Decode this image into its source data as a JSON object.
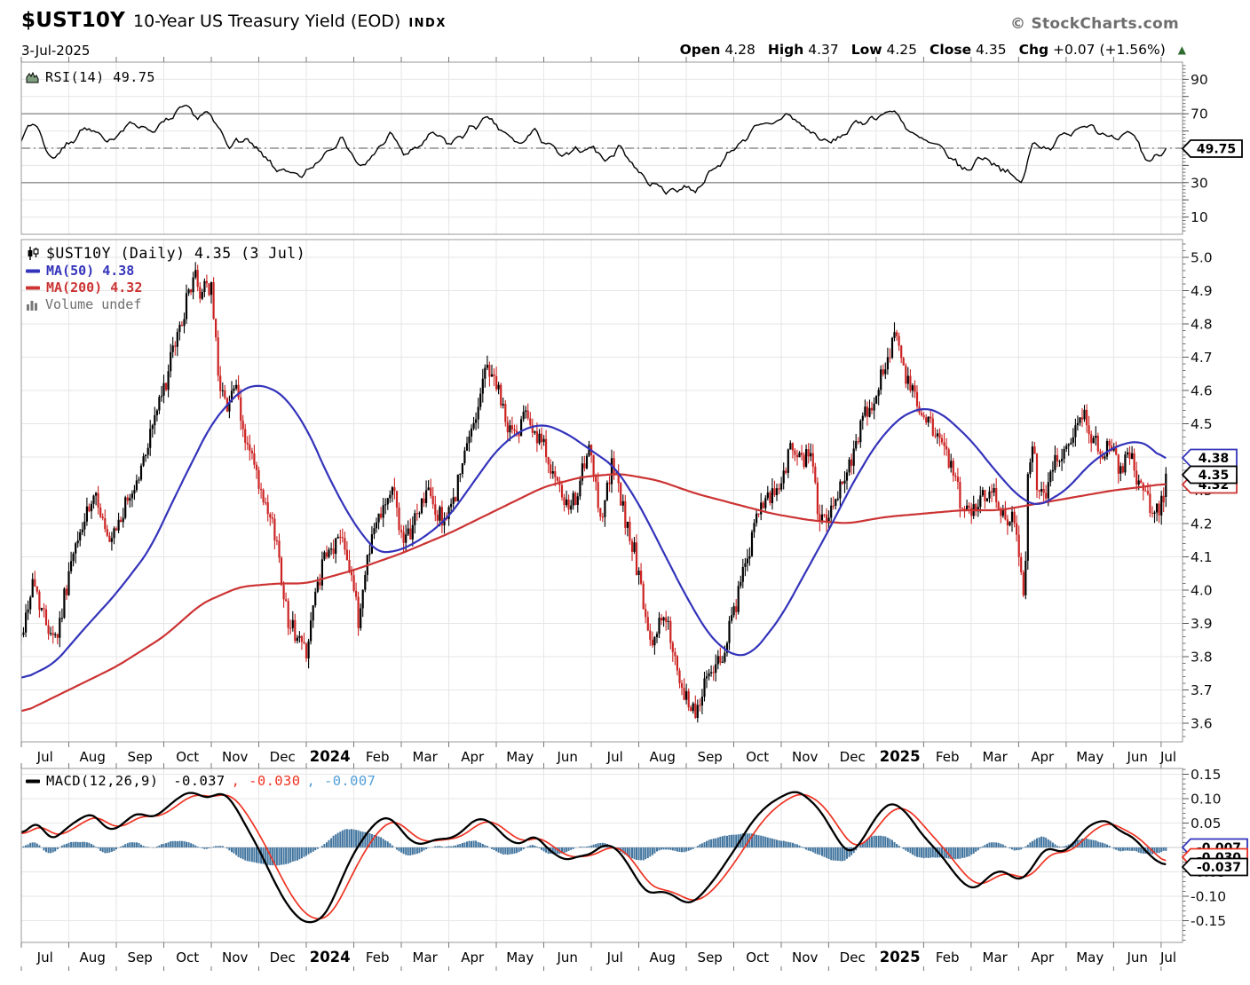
{
  "header": {
    "symbol": "$UST10Y",
    "title": "10-Year US Treasury Yield (EOD)",
    "exchange": "INDX",
    "date": "3-Jul-2025",
    "watermark": "© StockCharts.com",
    "quote": {
      "open_label": "Open",
      "open_value": "4.28",
      "high_label": "High",
      "high_value": "4.37",
      "low_label": "Low",
      "low_value": "4.25",
      "close_label": "Close",
      "close_value": "4.35",
      "chg_label": "Chg",
      "chg_value": "+0.07 (+1.56%)",
      "triangle": "▲"
    }
  },
  "rsi_panel": {
    "legend": "RSI(14) 49.75",
    "y_ticks": [
      "90",
      "70",
      "30",
      "10"
    ],
    "tag": "49.75",
    "bands": {
      "upper": 70,
      "lower": 30,
      "mid": 50
    }
  },
  "main_panel": {
    "legend_title": "$UST10Y (Daily) 4.35 (3 Jul)",
    "legend_ma50": "MA(50) 4.38",
    "legend_ma200": "MA(200) 4.32",
    "legend_volume": "Volume undef",
    "y_ticks": [
      "5.0",
      "4.9",
      "4.8",
      "4.7",
      "4.6",
      "4.5",
      "4.4",
      "4.3",
      "4.2",
      "4.1",
      "4.0",
      "3.9",
      "3.8",
      "3.7",
      "3.6"
    ],
    "tags": {
      "ma50": "4.38",
      "price": "4.35",
      "ma200": "4.32"
    }
  },
  "macd_panel": {
    "legend_name": "MACD(12,26,9)",
    "legend_macd": " -0.037",
    "legend_signal": ", -0.030",
    "legend_hist": ", -0.007",
    "y_ticks": [
      "0.15",
      "0.10",
      "0.05",
      "-0.05",
      "-0.10",
      "-0.15"
    ],
    "tags": {
      "hist": "-0.007",
      "signal": "-0.030",
      "macd": "-0.037"
    }
  },
  "x_axis": {
    "labels": [
      "Jul",
      "Aug",
      "Sep",
      "Oct",
      "Nov",
      "Dec",
      "2024",
      "Feb",
      "Mar",
      "Apr",
      "May",
      "Jun",
      "Jul",
      "Aug",
      "Sep",
      "Oct",
      "Nov",
      "Dec",
      "2025",
      "Feb",
      "Mar",
      "Apr",
      "May",
      "Jun",
      "Jul"
    ]
  },
  "colors": {
    "up_candle": "#000000",
    "down_candle": "#cc2222",
    "ma50": "#3333bb",
    "ma200": "#cc3333",
    "rsi_line": "#000000",
    "macd_line": "#000000",
    "signal_line": "#ee3322",
    "histogram": "#41749e",
    "hist_legend": "#55a0d8",
    "grid": "#e6e6e6",
    "zero_line": "#c9c9c9",
    "panel_border": "#999999",
    "band_line": "#8c8c8c",
    "axis_text": "#111111",
    "chg_triangle": "#2f6b2f",
    "volume_legend": "#6e6e6e",
    "rsi_icon_fill": "#7f9f7f"
  },
  "chart_data": {
    "type": "candlestick",
    "symbol": "$UST10Y",
    "timeframe": "daily",
    "x_unit": "months since Jul 2023",
    "trading_days_per_month": 21,
    "price_ylim": [
      3.544,
      5.053
    ],
    "rsi_ylim": [
      0,
      100
    ],
    "macd_ylim": [
      -0.195,
      0.162
    ],
    "ohlc_last": {
      "open": 4.28,
      "high": 4.37,
      "low": 4.25,
      "close": 4.35
    },
    "price_keyframes": [
      [
        0,
        3.86
      ],
      [
        0.25,
        4.03
      ],
      [
        0.5,
        3.91
      ],
      [
        0.75,
        3.86
      ],
      [
        1.0,
        4.05
      ],
      [
        1.3,
        4.2
      ],
      [
        1.6,
        4.28
      ],
      [
        1.85,
        4.12
      ],
      [
        2.1,
        4.22
      ],
      [
        2.5,
        4.35
      ],
      [
        2.8,
        4.52
      ],
      [
        3.0,
        4.6
      ],
      [
        3.2,
        4.72
      ],
      [
        3.45,
        4.85
      ],
      [
        3.65,
        4.96
      ],
      [
        3.75,
        4.87
      ],
      [
        3.85,
        4.93
      ],
      [
        4.0,
        4.9
      ],
      [
        4.15,
        4.65
      ],
      [
        4.3,
        4.55
      ],
      [
        4.5,
        4.62
      ],
      [
        4.65,
        4.48
      ],
      [
        4.85,
        4.4
      ],
      [
        5.1,
        4.25
      ],
      [
        5.35,
        4.17
      ],
      [
        5.6,
        3.92
      ],
      [
        5.8,
        3.86
      ],
      [
        6.0,
        3.82
      ],
      [
        6.15,
        3.95
      ],
      [
        6.35,
        4.08
      ],
      [
        6.55,
        4.12
      ],
      [
        6.75,
        4.18
      ],
      [
        6.95,
        4.05
      ],
      [
        7.1,
        3.9
      ],
      [
        7.3,
        4.12
      ],
      [
        7.6,
        4.26
      ],
      [
        7.85,
        4.3
      ],
      [
        8.05,
        4.12
      ],
      [
        8.3,
        4.22
      ],
      [
        8.55,
        4.3
      ],
      [
        8.75,
        4.22
      ],
      [
        9.0,
        4.22
      ],
      [
        9.3,
        4.38
      ],
      [
        9.6,
        4.55
      ],
      [
        9.8,
        4.68
      ],
      [
        10.0,
        4.62
      ],
      [
        10.2,
        4.5
      ],
      [
        10.45,
        4.46
      ],
      [
        10.6,
        4.58
      ],
      [
        10.8,
        4.46
      ],
      [
        11.05,
        4.42
      ],
      [
        11.3,
        4.3
      ],
      [
        11.55,
        4.23
      ],
      [
        11.75,
        4.32
      ],
      [
        11.95,
        4.42
      ],
      [
        12.2,
        4.22
      ],
      [
        12.45,
        4.38
      ],
      [
        12.7,
        4.22
      ],
      [
        12.9,
        4.12
      ],
      [
        13.1,
        3.95
      ],
      [
        13.25,
        3.82
      ],
      [
        13.45,
        3.92
      ],
      [
        13.65,
        3.88
      ],
      [
        13.85,
        3.7
      ],
      [
        14.1,
        3.65
      ],
      [
        14.25,
        3.64
      ],
      [
        14.45,
        3.76
      ],
      [
        14.7,
        3.78
      ],
      [
        14.95,
        3.9
      ],
      [
        15.2,
        4.05
      ],
      [
        15.5,
        4.22
      ],
      [
        15.8,
        4.28
      ],
      [
        16.0,
        4.32
      ],
      [
        16.2,
        4.43
      ],
      [
        16.4,
        4.38
      ],
      [
        16.6,
        4.42
      ],
      [
        16.8,
        4.22
      ],
      [
        17.0,
        4.2
      ],
      [
        17.25,
        4.32
      ],
      [
        17.5,
        4.4
      ],
      [
        17.75,
        4.52
      ],
      [
        17.95,
        4.58
      ],
      [
        18.2,
        4.68
      ],
      [
        18.42,
        4.79
      ],
      [
        18.6,
        4.64
      ],
      [
        18.8,
        4.58
      ],
      [
        19.0,
        4.52
      ],
      [
        19.25,
        4.48
      ],
      [
        19.5,
        4.4
      ],
      [
        19.75,
        4.28
      ],
      [
        19.95,
        4.22
      ],
      [
        20.2,
        4.28
      ],
      [
        20.45,
        4.32
      ],
      [
        20.7,
        4.22
      ],
      [
        20.95,
        4.2
      ],
      [
        21.05,
        4.05
      ],
      [
        21.12,
        3.94
      ],
      [
        21.2,
        4.35
      ],
      [
        21.3,
        4.45
      ],
      [
        21.4,
        4.3
      ],
      [
        21.55,
        4.28
      ],
      [
        21.75,
        4.4
      ],
      [
        21.95,
        4.42
      ],
      [
        22.15,
        4.48
      ],
      [
        22.35,
        4.54
      ],
      [
        22.55,
        4.46
      ],
      [
        22.75,
        4.42
      ],
      [
        22.95,
        4.42
      ],
      [
        23.15,
        4.36
      ],
      [
        23.35,
        4.42
      ],
      [
        23.55,
        4.3
      ],
      [
        23.75,
        4.26
      ],
      [
        23.95,
        4.23
      ],
      [
        24.05,
        4.28
      ],
      [
        24.1,
        4.35
      ]
    ],
    "ma50_keyframes": [
      [
        0,
        3.73
      ],
      [
        0.7,
        3.78
      ],
      [
        1.3,
        3.88
      ],
      [
        2,
        3.99
      ],
      [
        2.7,
        4.12
      ],
      [
        3.3,
        4.3
      ],
      [
        4,
        4.5
      ],
      [
        4.6,
        4.6
      ],
      [
        5,
        4.62
      ],
      [
        5.5,
        4.59
      ],
      [
        6,
        4.49
      ],
      [
        6.5,
        4.33
      ],
      [
        7,
        4.2
      ],
      [
        7.5,
        4.11
      ],
      [
        8,
        4.12
      ],
      [
        8.5,
        4.16
      ],
      [
        9,
        4.22
      ],
      [
        9.5,
        4.32
      ],
      [
        10,
        4.42
      ],
      [
        10.5,
        4.48
      ],
      [
        11,
        4.5
      ],
      [
        11.5,
        4.47
      ],
      [
        12,
        4.42
      ],
      [
        12.5,
        4.37
      ],
      [
        13,
        4.26
      ],
      [
        13.5,
        4.12
      ],
      [
        14,
        3.98
      ],
      [
        14.5,
        3.86
      ],
      [
        15,
        3.8
      ],
      [
        15.4,
        3.81
      ],
      [
        16,
        3.92
      ],
      [
        16.5,
        4.05
      ],
      [
        17,
        4.18
      ],
      [
        17.5,
        4.32
      ],
      [
        18,
        4.44
      ],
      [
        18.5,
        4.52
      ],
      [
        19,
        4.55
      ],
      [
        19.4,
        4.53
      ],
      [
        20,
        4.45
      ],
      [
        20.5,
        4.36
      ],
      [
        21,
        4.28
      ],
      [
        21.4,
        4.25
      ],
      [
        22,
        4.3
      ],
      [
        22.5,
        4.38
      ],
      [
        23,
        4.43
      ],
      [
        23.5,
        4.45
      ],
      [
        23.8,
        4.43
      ],
      [
        24.1,
        4.38
      ]
    ],
    "ma200_keyframes": [
      [
        0,
        3.63
      ],
      [
        1,
        3.7
      ],
      [
        2,
        3.77
      ],
      [
        3,
        3.86
      ],
      [
        3.8,
        3.96
      ],
      [
        4.6,
        4.01
      ],
      [
        5.4,
        4.02
      ],
      [
        6,
        4.02
      ],
      [
        7,
        4.06
      ],
      [
        8,
        4.11
      ],
      [
        9,
        4.17
      ],
      [
        10,
        4.24
      ],
      [
        11,
        4.31
      ],
      [
        11.8,
        4.34
      ],
      [
        12.6,
        4.35
      ],
      [
        13.4,
        4.33
      ],
      [
        14.2,
        4.29
      ],
      [
        15,
        4.26
      ],
      [
        15.8,
        4.23
      ],
      [
        16.6,
        4.21
      ],
      [
        17.4,
        4.2
      ],
      [
        18.2,
        4.22
      ],
      [
        19,
        4.23
      ],
      [
        19.8,
        4.24
      ],
      [
        20.6,
        4.24
      ],
      [
        21.4,
        4.26
      ],
      [
        22.2,
        4.28
      ],
      [
        23,
        4.3
      ],
      [
        23.6,
        4.31
      ],
      [
        24.1,
        4.32
      ]
    ],
    "rsi_keyframes": [
      [
        0,
        57
      ],
      [
        0.3,
        66
      ],
      [
        0.6,
        44
      ],
      [
        0.9,
        50
      ],
      [
        1.3,
        62
      ],
      [
        1.7,
        55
      ],
      [
        2,
        58
      ],
      [
        2.4,
        65
      ],
      [
        2.8,
        60
      ],
      [
        3.1,
        66
      ],
      [
        3.45,
        73
      ],
      [
        3.7,
        68
      ],
      [
        3.9,
        70
      ],
      [
        4.1,
        63
      ],
      [
        4.4,
        52
      ],
      [
        4.7,
        55
      ],
      [
        5,
        47
      ],
      [
        5.3,
        40
      ],
      [
        5.6,
        34
      ],
      [
        5.9,
        33
      ],
      [
        6.2,
        41
      ],
      [
        6.5,
        52
      ],
      [
        6.8,
        56
      ],
      [
        7,
        44
      ],
      [
        7.2,
        37
      ],
      [
        7.5,
        50
      ],
      [
        7.8,
        58
      ],
      [
        8.1,
        45
      ],
      [
        8.4,
        52
      ],
      [
        8.7,
        58
      ],
      [
        9,
        52
      ],
      [
        9.3,
        58
      ],
      [
        9.6,
        64
      ],
      [
        9.9,
        66
      ],
      [
        10.2,
        57
      ],
      [
        10.5,
        52
      ],
      [
        10.8,
        60
      ],
      [
        11.1,
        52
      ],
      [
        11.4,
        44
      ],
      [
        11.7,
        48
      ],
      [
        12,
        52
      ],
      [
        12.3,
        42
      ],
      [
        12.6,
        52
      ],
      [
        12.9,
        40
      ],
      [
        13.2,
        30
      ],
      [
        13.45,
        27
      ],
      [
        13.7,
        25
      ],
      [
        13.95,
        28
      ],
      [
        14.2,
        26
      ],
      [
        14.5,
        35
      ],
      [
        14.8,
        44
      ],
      [
        15.1,
        53
      ],
      [
        15.4,
        60
      ],
      [
        15.8,
        64
      ],
      [
        16.1,
        70
      ],
      [
        16.4,
        64
      ],
      [
        16.7,
        58
      ],
      [
        17,
        52
      ],
      [
        17.3,
        58
      ],
      [
        17.6,
        64
      ],
      [
        17.9,
        68
      ],
      [
        18.2,
        70
      ],
      [
        18.45,
        72
      ],
      [
        18.7,
        58
      ],
      [
        19,
        54
      ],
      [
        19.3,
        50
      ],
      [
        19.6,
        44
      ],
      [
        19.9,
        36
      ],
      [
        20.2,
        46
      ],
      [
        20.5,
        42
      ],
      [
        20.8,
        34
      ],
      [
        21.1,
        30
      ],
      [
        21.3,
        55
      ],
      [
        21.6,
        50
      ],
      [
        21.9,
        56
      ],
      [
        22.2,
        62
      ],
      [
        22.5,
        66
      ],
      [
        22.8,
        56
      ],
      [
        23.1,
        53
      ],
      [
        23.4,
        60
      ],
      [
        23.7,
        42
      ],
      [
        23.95,
        46
      ],
      [
        24.1,
        49.75
      ]
    ],
    "macd_keyframes": [
      [
        0,
        0.02
      ],
      [
        0.3,
        0.065
      ],
      [
        0.6,
        0.01
      ],
      [
        0.9,
        0.035
      ],
      [
        1.2,
        0.06
      ],
      [
        1.5,
        0.075
      ],
      [
        1.8,
        0.035
      ],
      [
        2.1,
        0.045
      ],
      [
        2.4,
        0.075
      ],
      [
        2.7,
        0.06
      ],
      [
        3,
        0.075
      ],
      [
        3.3,
        0.1
      ],
      [
        3.6,
        0.115
      ],
      [
        3.9,
        0.1
      ],
      [
        4.2,
        0.115
      ],
      [
        4.5,
        0.09
      ],
      [
        4.8,
        0.03
      ],
      [
        5.1,
        -0.02
      ],
      [
        5.4,
        -0.09
      ],
      [
        5.7,
        -0.13
      ],
      [
        6.0,
        -0.155
      ],
      [
        6.3,
        -0.155
      ],
      [
        6.6,
        -0.1
      ],
      [
        6.9,
        -0.03
      ],
      [
        7.2,
        0.02
      ],
      [
        7.5,
        0.055
      ],
      [
        7.8,
        0.065
      ],
      [
        8.1,
        0.02
      ],
      [
        8.4,
        0.0
      ],
      [
        8.7,
        0.02
      ],
      [
        9.0,
        0.015
      ],
      [
        9.3,
        0.035
      ],
      [
        9.6,
        0.06
      ],
      [
        9.9,
        0.055
      ],
      [
        10.2,
        0.02
      ],
      [
        10.5,
        0.005
      ],
      [
        10.8,
        0.025
      ],
      [
        11.1,
        0.0
      ],
      [
        11.4,
        -0.03
      ],
      [
        11.7,
        -0.02
      ],
      [
        12,
        -0.015
      ],
      [
        12.3,
        0.01
      ],
      [
        12.6,
        -0.005
      ],
      [
        12.9,
        -0.055
      ],
      [
        13.2,
        -0.1
      ],
      [
        13.5,
        -0.085
      ],
      [
        13.8,
        -0.105
      ],
      [
        14.1,
        -0.115
      ],
      [
        14.4,
        -0.09
      ],
      [
        14.7,
        -0.05
      ],
      [
        15,
        -0.01
      ],
      [
        15.3,
        0.04
      ],
      [
        15.6,
        0.08
      ],
      [
        15.9,
        0.1
      ],
      [
        16.2,
        0.115
      ],
      [
        16.5,
        0.11
      ],
      [
        16.8,
        0.08
      ],
      [
        17.1,
        0.03
      ],
      [
        17.4,
        -0.015
      ],
      [
        17.7,
        0.01
      ],
      [
        18,
        0.065
      ],
      [
        18.3,
        0.095
      ],
      [
        18.6,
        0.075
      ],
      [
        18.9,
        0.035
      ],
      [
        19.2,
        0.0
      ],
      [
        19.5,
        -0.03
      ],
      [
        19.8,
        -0.075
      ],
      [
        20.1,
        -0.085
      ],
      [
        20.4,
        -0.055
      ],
      [
        20.7,
        -0.045
      ],
      [
        21,
        -0.075
      ],
      [
        21.3,
        -0.04
      ],
      [
        21.6,
        0.005
      ],
      [
        21.9,
        -0.015
      ],
      [
        22.2,
        0.015
      ],
      [
        22.5,
        0.05
      ],
      [
        22.8,
        0.06
      ],
      [
        23.1,
        0.035
      ],
      [
        23.4,
        0.025
      ],
      [
        23.7,
        -0.01
      ],
      [
        23.95,
        -0.032
      ],
      [
        24.1,
        -0.037
      ]
    ]
  }
}
